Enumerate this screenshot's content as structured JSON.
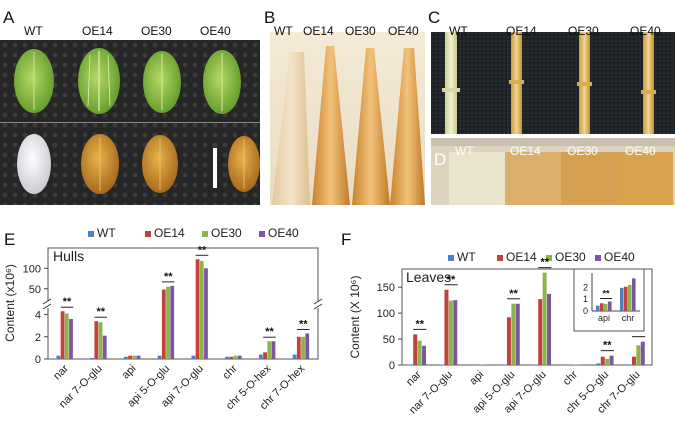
{
  "panels": {
    "A": {
      "letter": "A",
      "labels": [
        "WT",
        "OE14",
        "OE30",
        "OE40"
      ],
      "colors": {
        "seed_top": "#8fbf3e",
        "seed_bottom_wt": "#e8e8ea",
        "seed_bottom_oe": "#c78a28",
        "background": "#2a2a2a"
      }
    },
    "B": {
      "letter": "B",
      "labels": [
        "WT",
        "OE14",
        "OE30",
        "OE40"
      ],
      "colors": {
        "wt": "#e9d6b6",
        "oe": "#d99a45"
      }
    },
    "C": {
      "letter": "C",
      "labels": [
        "WT",
        "OE14",
        "OE30",
        "OE40"
      ],
      "colors": {
        "wt": "#e8e4b8",
        "oe": "#e0c069"
      }
    },
    "D": {
      "letter": "D",
      "labels": [
        "WT",
        "OE14",
        "OE30",
        "OE40"
      ],
      "colors": {
        "wt": "#e7e0c9",
        "oe": "#d9a24a"
      }
    }
  },
  "legend": [
    "WT",
    "OE14",
    "OE30",
    "OE40"
  ],
  "series_colors": [
    "#4f7fc0",
    "#c1413e",
    "#8db449",
    "#7a57a3"
  ],
  "chart_data": [
    {
      "panel": "E",
      "letter": "E",
      "type": "bar",
      "title": "Hulls",
      "ylabel": "Content (x10⁶)",
      "categories": [
        "nar",
        "nar 7-O-glu",
        "api",
        "api 5-O-glu",
        "api 7-O-glu",
        "chr",
        "chr 5-O-hex",
        "chr 7-O-hex"
      ],
      "series": [
        {
          "name": "WT",
          "values": [
            0.3,
            0.1,
            0.2,
            0.3,
            0.3,
            0.2,
            0.4,
            0.4
          ]
        },
        {
          "name": "OE14",
          "values": [
            4.3,
            3.4,
            0.3,
            48,
            122,
            0.2,
            0.6,
            2.0
          ]
        },
        {
          "name": "OE30",
          "values": [
            4.1,
            3.3,
            0.3,
            55,
            118,
            0.3,
            1.6,
            2.0
          ]
        },
        {
          "name": "OE40",
          "values": [
            3.6,
            2.1,
            0.3,
            57,
            100,
            0.3,
            1.6,
            2.3
          ]
        }
      ],
      "broken_axis": {
        "lower_ticks": [
          "0",
          "2",
          "4"
        ],
        "upper_ticks": [
          "50",
          "100"
        ]
      },
      "significance": [
        "**",
        "**",
        "",
        "**",
        "**",
        "",
        "**",
        "**"
      ]
    },
    {
      "panel": "F",
      "letter": "F",
      "type": "bar",
      "title": "Leaves",
      "ylabel": "Content (X 10⁶)",
      "categories": [
        "nar",
        "nar 7-O-glu",
        "api",
        "api 5-O-glu",
        "api 7-O-glu",
        "chr",
        "chr 5-O-glu",
        "chr 7-O-glu"
      ],
      "yticks": [
        "0",
        "50",
        "100",
        "150"
      ],
      "ylim": [
        0,
        185
      ],
      "series": [
        {
          "name": "WT",
          "values": [
            1,
            1,
            0.5,
            1,
            1,
            0.5,
            3,
            1
          ]
        },
        {
          "name": "OE14",
          "values": [
            59,
            145,
            0.6,
            92,
            127,
            0.8,
            16,
            16
          ]
        },
        {
          "name": "OE30",
          "values": [
            47,
            124,
            0.6,
            118,
            178,
            0.9,
            12,
            38
          ]
        },
        {
          "name": "OE40",
          "values": [
            37,
            125,
            0.7,
            118,
            137,
            1.0,
            18,
            45
          ]
        }
      ],
      "significance": [
        "**",
        "**",
        "",
        "**",
        "**",
        "",
        "**",
        "**"
      ],
      "inset": {
        "categories": [
          "api",
          "chr"
        ],
        "yticks": [
          "0",
          "1",
          "2"
        ],
        "ylim": [
          0,
          3.2
        ],
        "series": [
          {
            "name": "WT",
            "values": [
              0.45,
              1.95
            ]
          },
          {
            "name": "OE14",
            "values": [
              0.65,
              2.05
            ]
          },
          {
            "name": "OE30",
            "values": [
              0.6,
              2.2
            ]
          },
          {
            "name": "OE40",
            "values": [
              0.8,
              2.75
            ]
          }
        ],
        "significance": [
          "**",
          ""
        ]
      }
    }
  ]
}
